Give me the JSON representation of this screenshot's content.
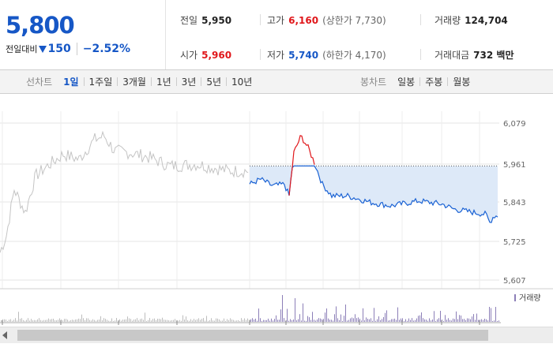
{
  "price": {
    "current": "5,800",
    "change_label": "전일대비",
    "change_value": "150",
    "change_rate": "−2.52%",
    "direction_icon": "down-triangle-icon"
  },
  "stats": {
    "prev_close_label": "전일",
    "prev_close": "5,950",
    "open_label": "시가",
    "open": "5,960",
    "high_label": "고가",
    "high": "6,160",
    "upper_limit": "(상한가 7,730)",
    "low_label": "저가",
    "low": "5,740",
    "lower_limit": "(하한가 4,170)",
    "volume_label": "거래량",
    "volume": "124,704",
    "amount_label": "거래대금",
    "amount": "732 백만"
  },
  "line_tabs": {
    "title": "선차트",
    "items": [
      "1일",
      "1주일",
      "3개월",
      "1년",
      "3년",
      "5년",
      "10년"
    ],
    "active": "1일"
  },
  "candle_tabs": {
    "title": "봉차트",
    "items": [
      "일봉",
      "주봉",
      "월봉"
    ]
  },
  "chart": {
    "y_ticks": [
      "6,079",
      "5,961",
      "5,843",
      "5,725",
      "5,607"
    ],
    "legend": "거래량",
    "colors": {
      "up": "#e0171b",
      "down": "#1a62d4",
      "past": "#c4c4c4",
      "fill": "#dde9f8",
      "volume_today": "#8c7fb8"
    }
  }
}
